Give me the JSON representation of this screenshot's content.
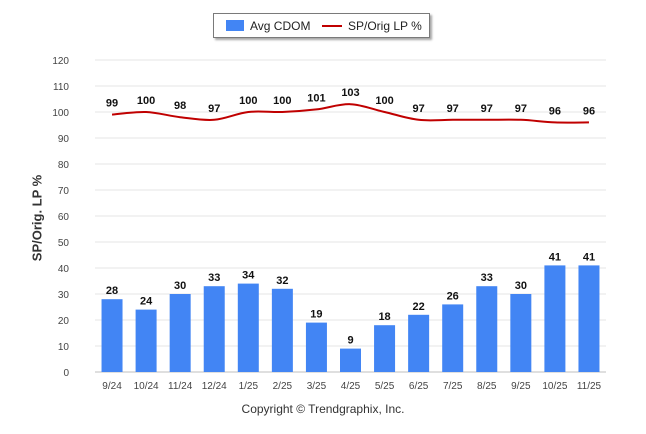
{
  "chart_data": {
    "type": "bar",
    "categories": [
      "9/24",
      "10/24",
      "11/24",
      "12/24",
      "1/25",
      "2/25",
      "3/25",
      "4/25",
      "5/25",
      "6/25",
      "7/25",
      "8/25",
      "9/25",
      "10/25",
      "11/25"
    ],
    "series": [
      {
        "name": "Avg CDOM",
        "type": "bar",
        "color": "#4285f4",
        "values": [
          28,
          24,
          30,
          33,
          34,
          32,
          19,
          9,
          18,
          22,
          26,
          33,
          30,
          41,
          41
        ]
      },
      {
        "name": "SP/Orig LP %",
        "type": "line",
        "color": "#c00000",
        "values": [
          99,
          100,
          98,
          97,
          100,
          100,
          101,
          103,
          100,
          97,
          97,
          97,
          97,
          96,
          96
        ]
      }
    ],
    "ylabel": "SP/Orig. LP %",
    "ylim": [
      0,
      120
    ],
    "yticks": [
      0,
      10,
      20,
      30,
      40,
      50,
      60,
      70,
      80,
      90,
      100,
      110,
      120
    ],
    "grid": true,
    "legend_position": "top-center"
  },
  "footer": {
    "copyright": "Copyright © Trendgraphix, Inc."
  }
}
